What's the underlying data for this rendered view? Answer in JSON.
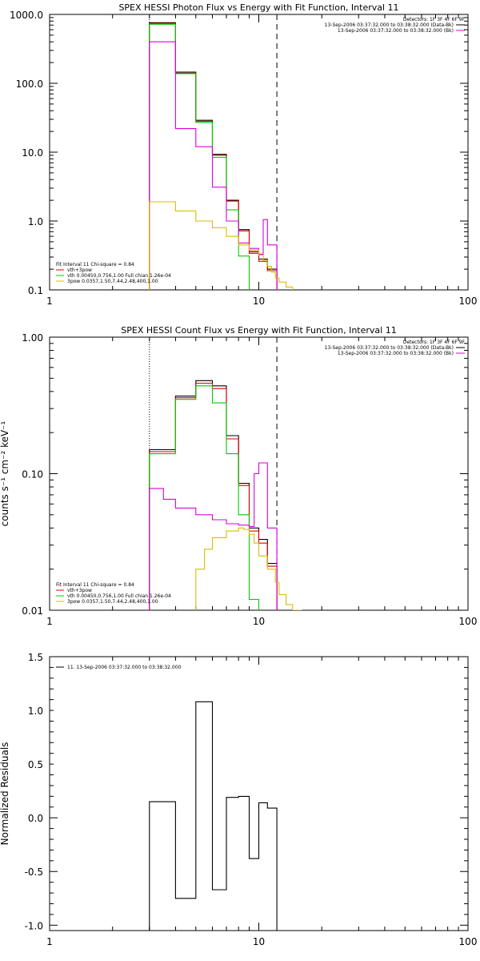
{
  "page": {
    "background": "#ffffff"
  },
  "colors": {
    "black": "#000000",
    "red": "#dd0000",
    "green": "#00cc00",
    "magenta": "#dd00dd",
    "yellow": "#ddbb00"
  },
  "chart_data": [
    {
      "id": "photon",
      "type": "line",
      "step": true,
      "title": "SPEX HESSI Photon Flux vs Energy with Fit Function, Interval 11",
      "xlabel": "",
      "ylabel": "",
      "xscale": "log",
      "yscale": "log",
      "xlim": [
        1,
        100
      ],
      "ylim": [
        0.1,
        1000
      ],
      "xtick_labels": [
        {
          "v": 1,
          "t": "1"
        },
        {
          "v": 10,
          "t": "10"
        },
        {
          "v": 100,
          "t": "100"
        }
      ],
      "ytick_labels": [
        {
          "v": 0.1,
          "t": "0.1"
        },
        {
          "v": 1,
          "t": "1.0"
        },
        {
          "v": 10,
          "t": "10.0"
        },
        {
          "v": 100,
          "t": "100.0"
        },
        {
          "v": 1000,
          "t": "1000.0"
        }
      ],
      "vlines": [
        {
          "x": 3.0,
          "style": "dotted"
        },
        {
          "x": 12.2,
          "style": "dashed"
        }
      ],
      "edges": [
        3.0,
        4.0,
        5.0,
        6.0,
        7.0,
        8.0,
        9.0,
        10.0,
        11.0,
        12.2
      ],
      "series": [
        {
          "color": "black",
          "values": [
            760,
            145,
            29,
            9.3,
            2.0,
            0.75,
            0.36,
            0.28,
            0.2
          ]
        },
        {
          "color": "red",
          "values": [
            740,
            140,
            28,
            9.0,
            1.95,
            0.72,
            0.34,
            0.26,
            0.19
          ]
        },
        {
          "color": "green",
          "values": [
            720,
            138,
            27,
            8.4,
            1.45,
            0.31,
            0.0,
            0.0,
            0.0
          ]
        },
        {
          "color": "magenta",
          "values": [
            400,
            22,
            12,
            3.1,
            1.0,
            0.48,
            0.4,
            0.33,
            1.05,
            0.45,
            0.1
          ],
          "edges": [
            3.0,
            4.0,
            5.0,
            6.0,
            7.0,
            8.0,
            9.0,
            10.0,
            10.5,
            11.0,
            12.2,
            12.3
          ]
        },
        {
          "color": "yellow",
          "values": [
            1.9,
            1.4,
            1.0,
            0.8,
            0.6,
            0.45,
            0.38,
            0.32,
            0.27,
            0.22,
            0.18,
            0.15,
            0.13,
            0.11,
            0.09
          ],
          "edges": [
            3.0,
            4.0,
            5.0,
            6.0,
            7.0,
            8.0,
            9.0,
            10.0,
            10.5,
            11.0,
            11.5,
            12.0,
            12.5,
            13.5,
            14.5,
            15.5
          ]
        }
      ],
      "header": {
        "line1": "Detectors: 1F 3F 4F 6F 9F",
        "line2": "13-Sep-2006 03:37:32.000 to 03:38:32.000 (Data-Bk)",
        "line3": "13-Sep-2006 03:37:32.000 to 03:38:32.000 (Bk)"
      },
      "legend": {
        "line0": "Fit Interval 11   Chi-square = 0.84",
        "line1": "vth+3pow",
        "line2": "vth 0.00450,0.756,1.00   Full chian 1.26e-04",
        "line3": "3pow 0.0357,1.50,7.44,2.48,400,1.00"
      }
    },
    {
      "id": "count",
      "type": "line",
      "step": true,
      "title": "SPEX HESSI Count Flux vs Energy with Fit Function, Interval 11",
      "xlabel": "",
      "ylabel": "counts s⁻¹ cm⁻² keV⁻¹",
      "xscale": "log",
      "yscale": "log",
      "xlim": [
        1,
        100
      ],
      "ylim": [
        0.01,
        1
      ],
      "xtick_labels": [
        {
          "v": 1,
          "t": "1"
        },
        {
          "v": 10,
          "t": "10"
        },
        {
          "v": 100,
          "t": "100"
        }
      ],
      "ytick_labels": [
        {
          "v": 0.01,
          "t": "0.01"
        },
        {
          "v": 0.1,
          "t": "0.10"
        },
        {
          "v": 1,
          "t": "1.00"
        }
      ],
      "vlines": [
        {
          "x": 3.0,
          "style": "dotted"
        },
        {
          "x": 12.2,
          "style": "dashed"
        }
      ],
      "series": [
        {
          "color": "black",
          "values": [
            0.15,
            0.37,
            0.48,
            0.44,
            0.19,
            0.085,
            0.04,
            0.033,
            0.022
          ],
          "edges": [
            3.0,
            4.0,
            5.0,
            6.0,
            7.0,
            8.0,
            9.0,
            10.0,
            11.0,
            12.2
          ]
        },
        {
          "color": "red",
          "values": [
            0.145,
            0.36,
            0.46,
            0.42,
            0.18,
            0.082,
            0.038,
            0.031,
            0.021
          ],
          "edges": [
            3.0,
            4.0,
            5.0,
            6.0,
            7.0,
            8.0,
            9.0,
            10.0,
            11.0,
            12.2
          ]
        },
        {
          "color": "green",
          "values": [
            0.14,
            0.35,
            0.44,
            0.33,
            0.14,
            0.05,
            0.012,
            0.004
          ],
          "edges": [
            3.0,
            4.0,
            5.0,
            6.0,
            7.0,
            8.0,
            9.0,
            10.0,
            11.0
          ]
        },
        {
          "color": "magenta",
          "values": [
            0.078,
            0.065,
            0.056,
            0.05,
            0.046,
            0.043,
            0.042,
            0.041,
            0.1,
            0.12,
            0.04,
            0.001
          ],
          "edges": [
            3.0,
            3.5,
            4.0,
            5.0,
            6.0,
            7.0,
            8.0,
            9.0,
            9.5,
            10.0,
            11.0,
            12.2,
            12.3
          ]
        },
        {
          "color": "yellow",
          "values": [
            0.004,
            0.02,
            0.028,
            0.034,
            0.038,
            0.04,
            0.039,
            0.036,
            0.031,
            0.025,
            0.02,
            0.016,
            0.013,
            0.011,
            0.01
          ],
          "edges": [
            4.0,
            5.0,
            5.5,
            6.0,
            7.0,
            8.0,
            8.5,
            9.0,
            9.5,
            10.0,
            11.0,
            12.0,
            12.5,
            13.5,
            14.5,
            16.0
          ]
        }
      ],
      "header": {
        "line1": "Detectors: 1F 3F 4F 6F 9F",
        "line2": "13-Sep-2006 03:37:32.000 to 03:38:32.000 (Data-Bk)",
        "line3": "13-Sep-2006 03:37:32.000 to 03:38:32.000 (Bk)"
      },
      "legend": {
        "line0": "Fit Interval 11   Chi-square = 0.84",
        "line1": "vth+3pow",
        "line2": "vth 0.00450,0.756,1.00   Full chian 1.26e-04",
        "line3": "3pow 0.0357,1.50,7.44,2.48,400,1.00"
      }
    },
    {
      "id": "residuals",
      "type": "line",
      "step": true,
      "title": "",
      "xlabel": "",
      "ylabel": "Normalized Residuals",
      "xscale": "log",
      "yscale": "linear",
      "xlim": [
        1,
        100
      ],
      "ylim": [
        -1.05,
        1.5
      ],
      "xtick_labels": [
        {
          "v": 1,
          "t": "1"
        },
        {
          "v": 10,
          "t": "10"
        },
        {
          "v": 100,
          "t": "100"
        }
      ],
      "ytick_labels": [
        {
          "v": -1,
          "t": "-1.0"
        },
        {
          "v": -0.5,
          "t": "-0.5"
        },
        {
          "v": 0,
          "t": "0.0"
        },
        {
          "v": 0.5,
          "t": "0.5"
        },
        {
          "v": 1,
          "t": "1.0"
        },
        {
          "v": 1.5,
          "t": "1.5"
        }
      ],
      "edges": [
        3.0,
        4.0,
        5.0,
        6.0,
        7.0,
        8.0,
        9.0,
        10.0,
        11.0,
        12.2
      ],
      "series": [
        {
          "color": "black",
          "values": [
            0.15,
            -0.75,
            1.08,
            -0.67,
            0.19,
            0.2,
            -0.38,
            0.14,
            0.09
          ]
        }
      ],
      "legend": {
        "line0": "11. 13-Sep-2006 03:37:32.000 to 03:38:32.000"
      }
    }
  ]
}
